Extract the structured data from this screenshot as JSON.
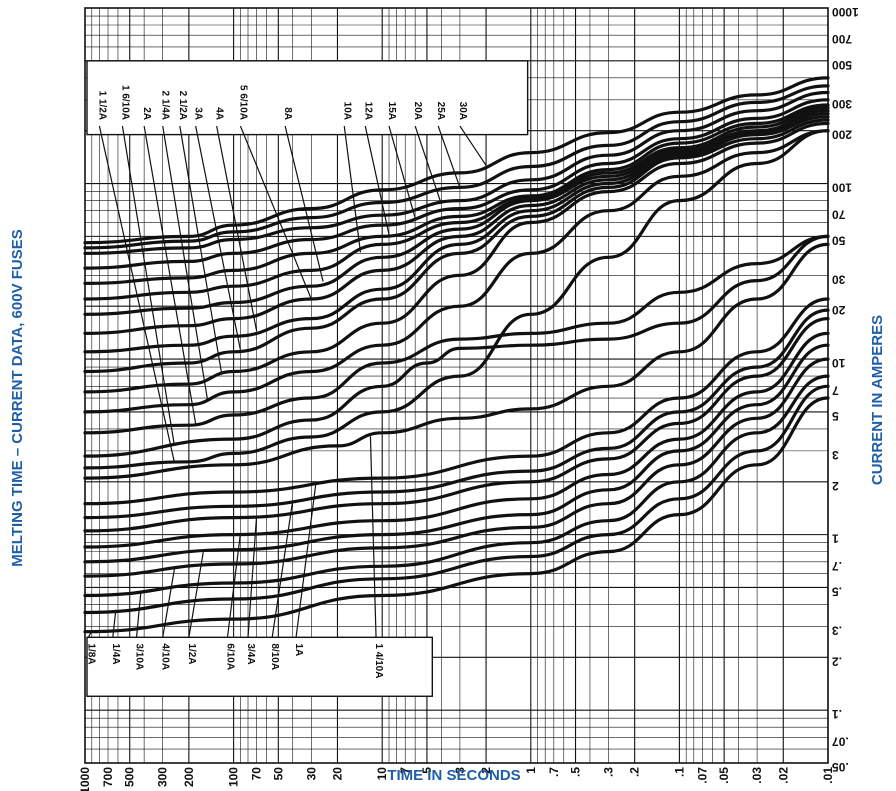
{
  "chart_data": {
    "type": "line",
    "title": "",
    "xlabel": "TIME IN SECONDS",
    "ylabel_left": "MELTING TIME – CURRENT DATA, 600V FUSES",
    "ylabel_right": "CURRENT IN AMPERES",
    "x_scale": "log",
    "y_scale": "log",
    "x_direction": "reversed",
    "xlim": [
      1000,
      0.01
    ],
    "ylim": [
      0.05,
      1000
    ],
    "grid": true,
    "x_ticks": [
      "1000",
      "700",
      "500",
      "300",
      "200",
      "100",
      "70",
      "50",
      "30",
      "20",
      "10",
      "7",
      "5",
      "3",
      "2",
      "1",
      ".7",
      ".5",
      ".3",
      ".2",
      ".1",
      ".07",
      ".05",
      ".03",
      ".02",
      ".01"
    ],
    "x_tick_values": [
      1000,
      700,
      500,
      300,
      200,
      100,
      70,
      50,
      30,
      20,
      10,
      7,
      5,
      3,
      2,
      1,
      0.7,
      0.5,
      0.3,
      0.2,
      0.1,
      0.07,
      0.05,
      0.03,
      0.02,
      0.01
    ],
    "y_ticks": [
      "1000",
      "700",
      "500",
      "300",
      "200",
      "100",
      "70",
      "50",
      "30",
      "20",
      "10",
      "7",
      "5",
      "3",
      "2",
      "1",
      ".7",
      ".5",
      ".3",
      ".2",
      ".1",
      ".07",
      ".05"
    ],
    "y_tick_values": [
      1000,
      700,
      500,
      300,
      200,
      100,
      70,
      50,
      30,
      20,
      10,
      7,
      5,
      3,
      2,
      1,
      0.7,
      0.5,
      0.3,
      0.2,
      0.1,
      0.07,
      0.05
    ],
    "series": [
      {
        "name": "1/8A",
        "label": "1/8A",
        "points": [
          [
            1000,
            0.28
          ],
          [
            100,
            0.33
          ],
          [
            10,
            0.45
          ],
          [
            1,
            0.6
          ],
          [
            0.3,
            0.8
          ],
          [
            0.1,
            1.3
          ],
          [
            0.03,
            2.5
          ],
          [
            0.01,
            6
          ]
        ]
      },
      {
        "name": "1/4A",
        "label": "1/4A",
        "points": [
          [
            1000,
            0.36
          ],
          [
            100,
            0.43
          ],
          [
            10,
            0.56
          ],
          [
            1,
            0.75
          ],
          [
            0.3,
            1.0
          ],
          [
            0.1,
            1.6
          ],
          [
            0.03,
            3
          ],
          [
            0.01,
            7
          ]
        ]
      },
      {
        "name": "3/10A",
        "label": "3/10A",
        "points": [
          [
            1000,
            0.45
          ],
          [
            100,
            0.53
          ],
          [
            10,
            0.66
          ],
          [
            1,
            0.9
          ],
          [
            0.3,
            1.2
          ],
          [
            0.1,
            2.0
          ],
          [
            0.03,
            3.8
          ],
          [
            0.01,
            8
          ]
        ]
      },
      {
        "name": "4/10A",
        "label": "4/10A",
        "points": [
          [
            1000,
            0.58
          ],
          [
            100,
            0.68
          ],
          [
            10,
            0.84
          ],
          [
            1,
            1.1
          ],
          [
            0.3,
            1.5
          ],
          [
            0.1,
            2.5
          ],
          [
            0.03,
            4.6
          ],
          [
            0.01,
            10
          ]
        ]
      },
      {
        "name": "1/2A",
        "label": "1/2A",
        "points": [
          [
            1000,
            0.7
          ],
          [
            100,
            0.82
          ],
          [
            10,
            1.0
          ],
          [
            1,
            1.3
          ],
          [
            0.3,
            1.8
          ],
          [
            0.1,
            3.0
          ],
          [
            0.03,
            5.5
          ],
          [
            0.01,
            12
          ]
        ]
      },
      {
        "name": "6/10A",
        "label": "6/10A",
        "points": [
          [
            1000,
            0.85
          ],
          [
            100,
            1.0
          ],
          [
            10,
            1.2
          ],
          [
            1,
            1.6
          ],
          [
            0.3,
            2.2
          ],
          [
            0.1,
            3.5
          ],
          [
            0.03,
            6.5
          ],
          [
            0.01,
            14
          ]
        ]
      },
      {
        "name": "3/4A",
        "label": "3/4A",
        "points": [
          [
            1000,
            1.05
          ],
          [
            100,
            1.25
          ],
          [
            10,
            1.5
          ],
          [
            1,
            2.0
          ],
          [
            0.3,
            2.7
          ],
          [
            0.1,
            4.3
          ],
          [
            0.03,
            8
          ],
          [
            0.01,
            17
          ]
        ]
      },
      {
        "name": "8/10A",
        "label": "8/10A",
        "points": [
          [
            1000,
            1.25
          ],
          [
            100,
            1.45
          ],
          [
            10,
            1.75
          ],
          [
            1,
            2.3
          ],
          [
            0.3,
            3.1
          ],
          [
            0.1,
            5.0
          ],
          [
            0.03,
            9
          ],
          [
            0.01,
            19
          ]
        ]
      },
      {
        "name": "1A",
        "label": "1A",
        "points": [
          [
            1000,
            1.5
          ],
          [
            100,
            1.75
          ],
          [
            10,
            2.1
          ],
          [
            1,
            2.8
          ],
          [
            0.3,
            3.8
          ],
          [
            0.1,
            6.0
          ],
          [
            0.03,
            11
          ],
          [
            0.01,
            22
          ]
        ]
      },
      {
        "name": "1 4/10A",
        "label": "1 4/10A",
        "points": [
          [
            1000,
            2.1
          ],
          [
            100,
            2.5
          ],
          [
            20,
            3.2
          ],
          [
            10,
            3.8
          ],
          [
            3,
            4.6
          ],
          [
            1,
            5.2
          ],
          [
            0.3,
            7
          ],
          [
            0.1,
            11
          ],
          [
            0.03,
            22
          ],
          [
            0.01,
            45
          ]
        ]
      },
      {
        "name": "1 1/2A",
        "label": "1 1/2A",
        "points": [
          [
            1000,
            2.4
          ],
          [
            200,
            2.6
          ],
          [
            100,
            2.9
          ],
          [
            30,
            3.6
          ],
          [
            10,
            5.0
          ],
          [
            3,
            8
          ],
          [
            1,
            18
          ],
          [
            0.3,
            38
          ],
          [
            0.1,
            80
          ],
          [
            0.03,
            130
          ],
          [
            0.01,
            200
          ]
        ]
      },
      {
        "name": "1 6/10A",
        "label": "1 6/10A",
        "points": [
          [
            1000,
            2.8
          ],
          [
            100,
            3.5
          ],
          [
            30,
            4.5
          ],
          [
            10,
            7
          ],
          [
            5,
            9.5
          ],
          [
            3,
            11.5
          ],
          [
            1,
            12
          ],
          [
            0.3,
            13
          ],
          [
            0.1,
            16
          ],
          [
            0.03,
            28
          ],
          [
            0.01,
            50
          ]
        ]
      },
      {
        "name": "2A",
        "label": "2A",
        "points": [
          [
            1000,
            3.8
          ],
          [
            200,
            4.2
          ],
          [
            100,
            4.8
          ],
          [
            30,
            6
          ],
          [
            10,
            9.5
          ],
          [
            3,
            13
          ],
          [
            1,
            14
          ],
          [
            0.3,
            16
          ],
          [
            0.1,
            24
          ],
          [
            0.03,
            35
          ],
          [
            0.01,
            50
          ]
        ]
      },
      {
        "name": "2 1/4A",
        "label": "2 1/4A",
        "points": [
          [
            1000,
            5
          ],
          [
            200,
            5.5
          ],
          [
            100,
            6.5
          ],
          [
            30,
            8.5
          ],
          [
            10,
            12
          ],
          [
            3,
            20
          ],
          [
            1,
            40
          ],
          [
            0.3,
            70
          ],
          [
            0.1,
            110
          ],
          [
            0.03,
            150
          ],
          [
            0.01,
            200
          ]
        ]
      },
      {
        "name": "2 1/2A",
        "label": "2 1/2A",
        "points": [
          [
            1000,
            6.5
          ],
          [
            200,
            7.2
          ],
          [
            100,
            8.5
          ],
          [
            30,
            11
          ],
          [
            10,
            16
          ],
          [
            3,
            30
          ],
          [
            1,
            60
          ],
          [
            0.3,
            90
          ],
          [
            0.1,
            130
          ],
          [
            0.03,
            170
          ],
          [
            0.01,
            220
          ]
        ]
      },
      {
        "name": "3A",
        "label": "3A",
        "points": [
          [
            1000,
            8.5
          ],
          [
            200,
            9.5
          ],
          [
            100,
            11
          ],
          [
            30,
            15
          ],
          [
            10,
            22
          ],
          [
            3,
            40
          ],
          [
            1,
            65
          ],
          [
            0.3,
            95
          ],
          [
            0.1,
            140
          ],
          [
            0.03,
            180
          ],
          [
            0.01,
            230
          ]
        ]
      },
      {
        "name": "4A",
        "label": "4A",
        "points": [
          [
            1000,
            11
          ],
          [
            200,
            12
          ],
          [
            100,
            13.5
          ],
          [
            30,
            17
          ],
          [
            10,
            25
          ],
          [
            3,
            45
          ],
          [
            1,
            70
          ],
          [
            0.3,
            100
          ],
          [
            0.1,
            145
          ],
          [
            0.03,
            190
          ],
          [
            0.01,
            240
          ]
        ]
      },
      {
        "name": "5 6/10A",
        "label": "5 6/10A",
        "points": [
          [
            1000,
            14
          ],
          [
            200,
            15.5
          ],
          [
            100,
            17
          ],
          [
            30,
            22
          ],
          [
            10,
            32
          ],
          [
            3,
            50
          ],
          [
            1,
            75
          ],
          [
            0.3,
            105
          ],
          [
            0.1,
            150
          ],
          [
            0.03,
            195
          ],
          [
            0.01,
            250
          ]
        ]
      },
      {
        "name": "8A",
        "label": "8A",
        "points": [
          [
            1000,
            18
          ],
          [
            200,
            19.5
          ],
          [
            100,
            21
          ],
          [
            30,
            26
          ],
          [
            10,
            38
          ],
          [
            3,
            55
          ],
          [
            1,
            80
          ],
          [
            0.3,
            110
          ],
          [
            0.1,
            155
          ],
          [
            0.03,
            200
          ],
          [
            0.01,
            260
          ]
        ]
      },
      {
        "name": "10A",
        "label": "10A",
        "points": [
          [
            1000,
            22
          ],
          [
            200,
            24
          ],
          [
            100,
            26
          ],
          [
            30,
            32
          ],
          [
            10,
            45
          ],
          [
            3,
            60
          ],
          [
            1,
            82
          ],
          [
            0.3,
            115
          ],
          [
            0.1,
            160
          ],
          [
            0.03,
            210
          ],
          [
            0.01,
            270
          ]
        ]
      },
      {
        "name": "12A",
        "label": "12A",
        "points": [
          [
            1000,
            27
          ],
          [
            200,
            29
          ],
          [
            100,
            32
          ],
          [
            30,
            40
          ],
          [
            10,
            50
          ],
          [
            3,
            65
          ],
          [
            1,
            85
          ],
          [
            0.3,
            120
          ],
          [
            0.1,
            170
          ],
          [
            0.03,
            220
          ],
          [
            0.01,
            280
          ]
        ]
      },
      {
        "name": "15A",
        "label": "15A",
        "points": [
          [
            1000,
            33
          ],
          [
            200,
            36
          ],
          [
            100,
            40
          ],
          [
            30,
            48
          ],
          [
            10,
            58
          ],
          [
            3,
            72
          ],
          [
            1,
            92
          ],
          [
            0.3,
            130
          ],
          [
            0.1,
            180
          ],
          [
            0.03,
            235
          ],
          [
            0.01,
            300
          ]
        ]
      },
      {
        "name": "20A",
        "label": "20A",
        "points": [
          [
            1000,
            40
          ],
          [
            200,
            43
          ],
          [
            100,
            48
          ],
          [
            30,
            56
          ],
          [
            10,
            66
          ],
          [
            3,
            80
          ],
          [
            1,
            105
          ],
          [
            0.3,
            145
          ],
          [
            0.1,
            200
          ],
          [
            0.03,
            260
          ],
          [
            0.01,
            330
          ]
        ]
      },
      {
        "name": "25A",
        "label": "25A",
        "points": [
          [
            1000,
            43
          ],
          [
            200,
            47
          ],
          [
            100,
            53
          ],
          [
            30,
            64
          ],
          [
            10,
            78
          ],
          [
            3,
            95
          ],
          [
            1,
            125
          ],
          [
            0.3,
            165
          ],
          [
            0.1,
            225
          ],
          [
            0.03,
            290
          ],
          [
            0.01,
            360
          ]
        ]
      },
      {
        "name": "30A",
        "label": "30A",
        "points": [
          [
            1000,
            46
          ],
          [
            200,
            50
          ],
          [
            100,
            58
          ],
          [
            30,
            72
          ],
          [
            10,
            92
          ],
          [
            3,
            115
          ],
          [
            1,
            150
          ],
          [
            0.3,
            195
          ],
          [
            0.1,
            255
          ],
          [
            0.03,
            320
          ],
          [
            0.01,
            400
          ]
        ]
      }
    ]
  }
}
